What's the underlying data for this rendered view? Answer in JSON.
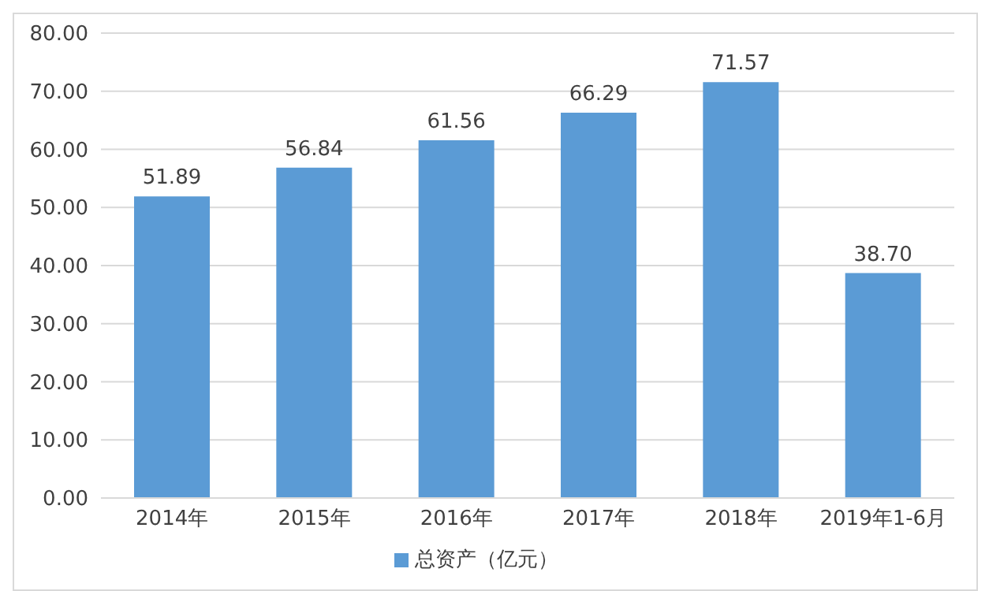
{
  "chart_data": {
    "type": "bar",
    "categories": [
      "2014年",
      "2015年",
      "2016年",
      "2017年",
      "2018年",
      "2019年1-6月"
    ],
    "series": [
      {
        "name": "总资产（亿元）",
        "color": "#5b9bd5",
        "values": [
          51.89,
          56.84,
          61.56,
          66.29,
          71.57,
          38.7
        ],
        "value_labels": [
          "51.89",
          "56.84",
          "61.56",
          "66.29",
          "71.57",
          "38.70"
        ]
      }
    ],
    "ylim": [
      0,
      80
    ],
    "yticks": [
      {
        "value": 0,
        "label": "0.00"
      },
      {
        "value": 10,
        "label": "10.00"
      },
      {
        "value": 20,
        "label": "20.00"
      },
      {
        "value": 30,
        "label": "30.00"
      },
      {
        "value": 40,
        "label": "40.00"
      },
      {
        "value": 50,
        "label": "50.00"
      },
      {
        "value": 60,
        "label": "60.00"
      },
      {
        "value": 70,
        "label": "70.00"
      },
      {
        "value": 80,
        "label": "80.00"
      }
    ],
    "grid": "y",
    "legend": "bottom"
  }
}
